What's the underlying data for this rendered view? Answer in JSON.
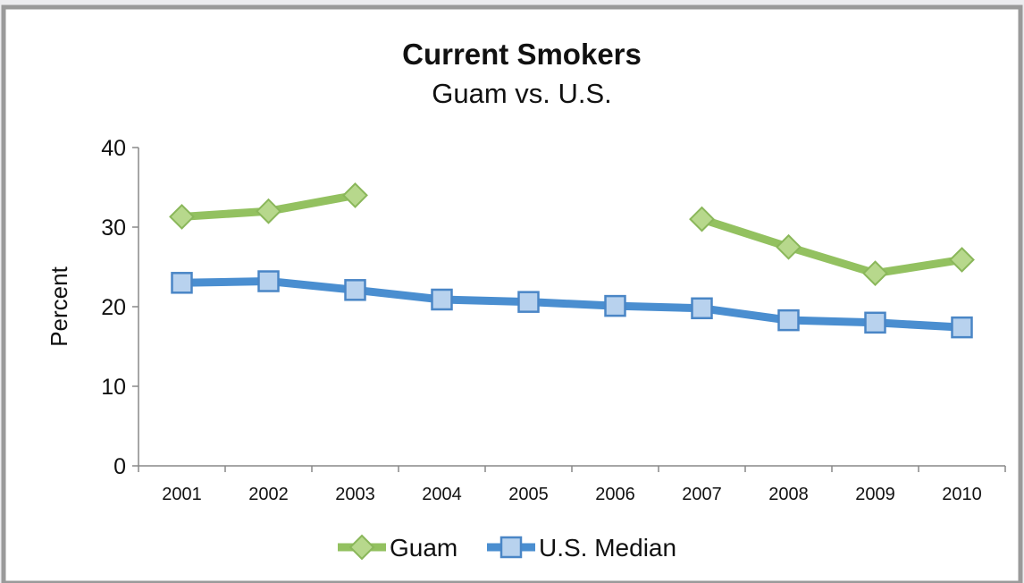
{
  "colors": {
    "guam_line": "#93c160",
    "guam_marker_fill": "#b7d88c",
    "guam_marker_stroke": "#8ab75a",
    "us_line": "#4a8ed0",
    "us_marker_fill": "#b8d2ee",
    "us_marker_stroke": "#4a86c6",
    "axis": "#888888",
    "background": "#ffffff"
  },
  "chart_data": {
    "type": "line",
    "title": "Current Smokers",
    "subtitle": "Guam vs. U.S.",
    "xlabel": "",
    "ylabel": "Percent",
    "ylim": [
      0,
      40
    ],
    "yticks": [
      "0",
      "10",
      "20",
      "30",
      "40"
    ],
    "grid": false,
    "legend_position": "bottom",
    "categories": [
      "2001",
      "2002",
      "2003",
      "2004",
      "2005",
      "2006",
      "2007",
      "2008",
      "2009",
      "2010"
    ],
    "series": [
      {
        "name": "Guam",
        "marker": "diamond",
        "values": [
          31.3,
          32.0,
          34.0,
          null,
          null,
          null,
          31.0,
          27.5,
          24.2,
          25.9
        ]
      },
      {
        "name": "U.S. Median",
        "marker": "square",
        "values": [
          23.0,
          23.2,
          22.1,
          20.9,
          20.6,
          20.1,
          19.8,
          18.3,
          18.0,
          17.4
        ]
      }
    ]
  }
}
